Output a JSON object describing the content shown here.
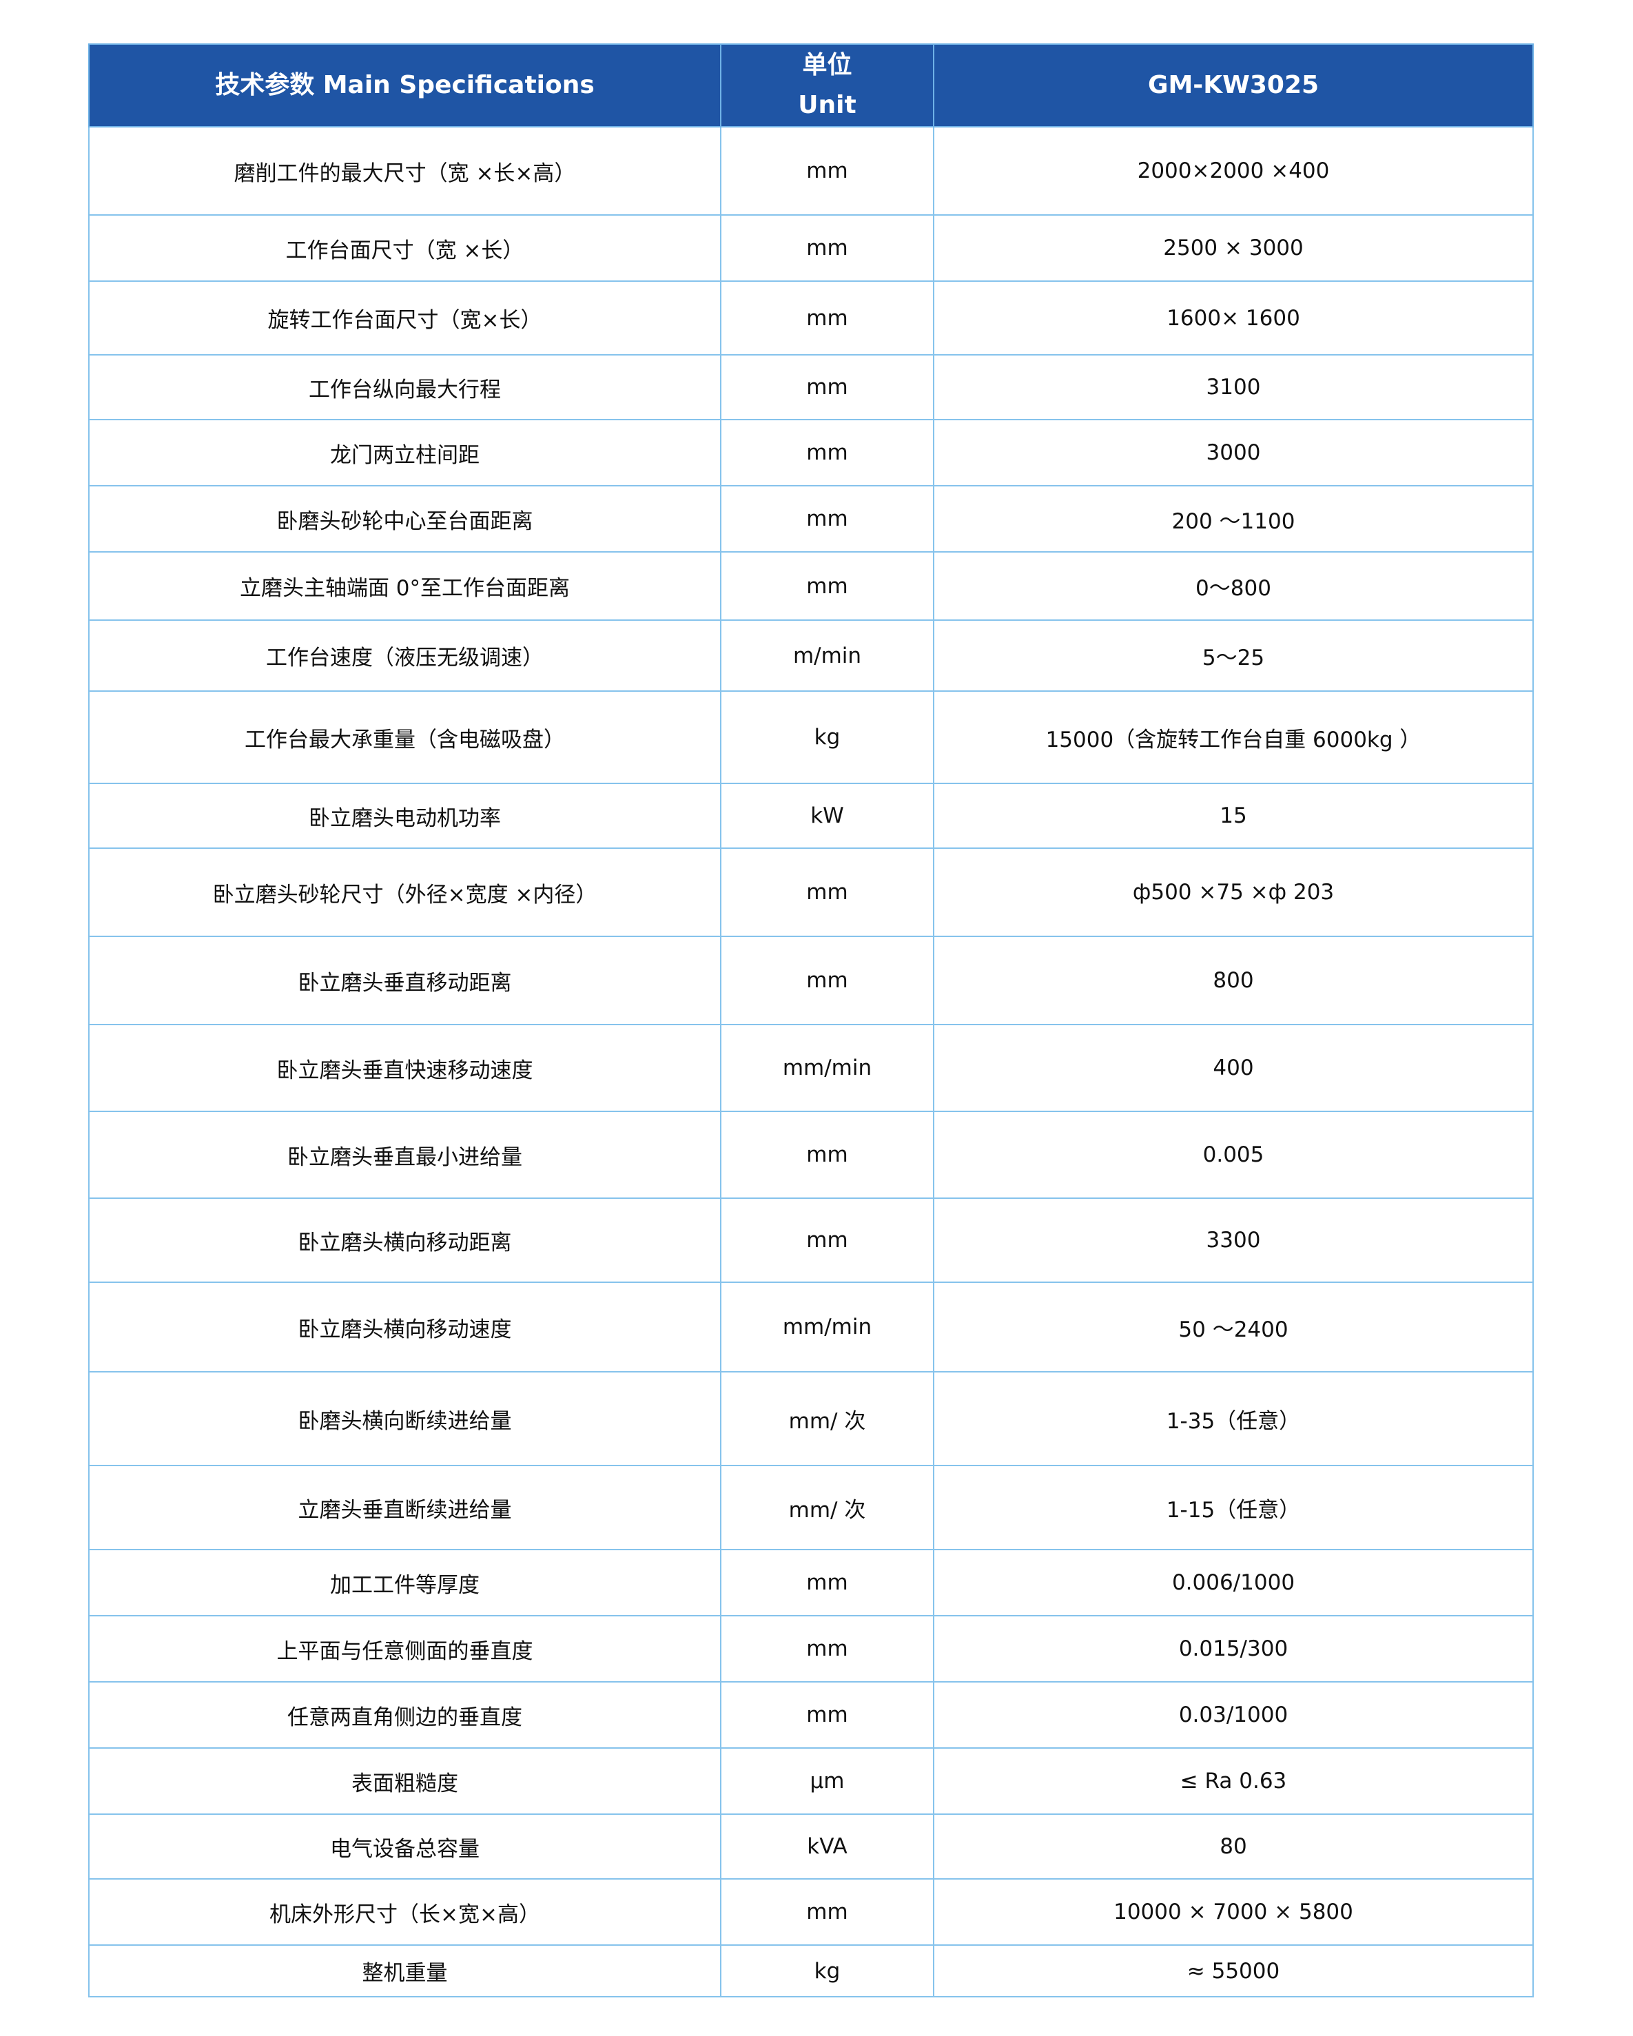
{
  "header": {
    "param": "技术参数 Main Specifications",
    "unit_cn": "单位",
    "unit_en": "Unit",
    "model": "GM-KW3025"
  },
  "rows": [
    {
      "param": "磨削工件的最大尺寸（宽 ×长×高）",
      "unit": "mm",
      "value": "2000×2000 ×400"
    },
    {
      "param": "工作台面尺寸（宽 ×长）",
      "unit": "mm",
      "value": "2500 × 3000"
    },
    {
      "param": "旋转工作台面尺寸（宽×长）",
      "unit": "mm",
      "value": "1600× 1600"
    },
    {
      "param": "工作台纵向最大行程",
      "unit": "mm",
      "value": "3100"
    },
    {
      "param": "龙门两立柱间距",
      "unit": "mm",
      "value": "3000"
    },
    {
      "param": "卧磨头砂轮中心至台面距离",
      "unit": "mm",
      "value": "200 ～1100"
    },
    {
      "param": "立磨头主轴端面 0°至工作台面距离",
      "unit": "mm",
      "value": "0～800"
    },
    {
      "param": "工作台速度（液压无级调速）",
      "unit": "m/min",
      "value": "5～25"
    },
    {
      "param": "工作台最大承重量（含电磁吸盘）",
      "unit": "kg",
      "value": "15000（含旋转工作台自重 6000kg ）"
    },
    {
      "param": "卧立磨头电动机功率",
      "unit": "kW",
      "value": "15"
    },
    {
      "param": "卧立磨头砂轮尺寸（外径×宽度 ×内径）",
      "unit": "mm",
      "value": "ф500 ×75 ×ф 203"
    },
    {
      "param": "卧立磨头垂直移动距离",
      "unit": "mm",
      "value": "800"
    },
    {
      "param": "卧立磨头垂直快速移动速度",
      "unit": "mm/min",
      "value": "400"
    },
    {
      "param": "卧立磨头垂直最小进给量",
      "unit": "mm",
      "value": "0.005"
    },
    {
      "param": "卧立磨头横向移动距离",
      "unit": "mm",
      "value": "3300"
    },
    {
      "param": "卧立磨头横向移动速度",
      "unit": "mm/min",
      "value": "50 ～2400"
    },
    {
      "param": "卧磨头横向断续进给量",
      "unit": "mm/ 次",
      "value": "1-35（任意）"
    },
    {
      "param": "立磨头垂直断续进给量",
      "unit": "mm/ 次",
      "value": "1-15（任意）"
    },
    {
      "param": "加工工件等厚度",
      "unit": "mm",
      "value": "0.006/1000"
    },
    {
      "param": "上平面与任意侧面的垂直度",
      "unit": "mm",
      "value": "0.015/300"
    },
    {
      "param": "任意两直角侧边的垂直度",
      "unit": "mm",
      "value": "0.03/1000"
    },
    {
      "param": "表面粗糙度",
      "unit": "μm",
      "value": "≤ Ra  0.63"
    },
    {
      "param": "电气设备总容量",
      "unit": "kVA",
      "value": "80"
    },
    {
      "param": "机床外形尺寸（长×宽×高）",
      "unit": "mm",
      "value": "10000 × 7000 × 5800"
    },
    {
      "param": "整机重量",
      "unit": "kg",
      "value": "≈ 55000"
    }
  ]
}
